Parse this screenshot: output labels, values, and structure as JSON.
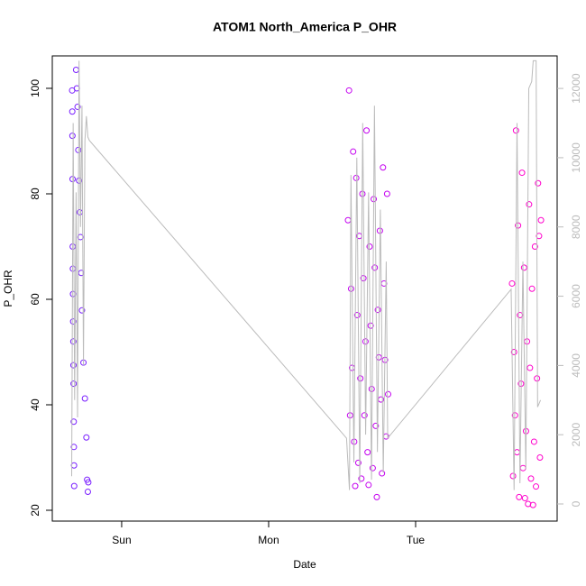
{
  "chart_data": {
    "type": "scatter",
    "title": "ATOM1 North_America P_OHR",
    "xlabel": "Date",
    "ylabel": "P_OHR",
    "xlim": [
      0.528,
      3.963
    ],
    "xticks": [
      {
        "value": 1,
        "label": "Sun"
      },
      {
        "value": 2,
        "label": "Mon"
      },
      {
        "value": 3,
        "label": "Tue"
      }
    ],
    "ylim": [
      17.95,
      106.15
    ],
    "yticks": [
      20,
      40,
      60,
      80,
      100
    ],
    "y2lim": [
      -495,
      12940
    ],
    "y2ticks": [
      0,
      2000,
      4000,
      6000,
      8000,
      10000,
      12000
    ],
    "y2color": "#bbbbbb",
    "series": [
      {
        "color": "#7a1fff",
        "x": [
          0.663,
          0.664,
          0.665,
          0.666,
          0.667,
          0.668,
          0.669,
          0.67,
          0.671,
          0.672,
          0.673,
          0.674,
          0.675,
          0.676,
          0.677,
          0.69,
          0.695,
          0.7,
          0.705,
          0.71,
          0.715,
          0.72,
          0.725,
          0.73,
          0.74,
          0.75,
          0.76,
          0.765,
          0.77,
          0.773
        ],
        "values": [
          99.6,
          95.6,
          91,
          82.8,
          70,
          65.8,
          61,
          55.8,
          52,
          47.5,
          44,
          36.8,
          32,
          28.5,
          24.6,
          103.5,
          100,
          96.5,
          88.3,
          82.5,
          76.5,
          71.8,
          65,
          57.9,
          48,
          41.2,
          33.8,
          25.8,
          23.5,
          25.3
        ]
      },
      {
        "color": "#c400f0",
        "x": [
          2.54,
          2.547,
          2.554,
          2.561,
          2.568,
          2.575,
          2.582,
          2.589,
          2.596,
          2.603,
          2.61,
          2.617,
          2.624,
          2.631,
          2.638,
          2.645,
          2.652,
          2.659,
          2.666,
          2.673,
          2.68,
          2.687,
          2.694,
          2.701,
          2.708,
          2.715,
          2.722,
          2.729,
          2.736,
          2.743,
          2.75,
          2.757,
          2.764,
          2.771,
          2.778,
          2.785,
          2.792,
          2.799,
          2.806,
          2.813
        ],
        "values": [
          75,
          99.6,
          38,
          62,
          47,
          88,
          33,
          24.6,
          83,
          57,
          29,
          72,
          45,
          26,
          80,
          64,
          38,
          52,
          92,
          31,
          24.8,
          70,
          55,
          43,
          28,
          79,
          66,
          36,
          22.5,
          58,
          49,
          73,
          41,
          27,
          85,
          63,
          48.5,
          34,
          80,
          42
        ]
      },
      {
        "color": "#ff00cc",
        "x": [
          3.656,
          3.663,
          3.67,
          3.676,
          3.683,
          3.69,
          3.697,
          3.704,
          3.71,
          3.717,
          3.724,
          3.731,
          3.738,
          3.744,
          3.751,
          3.758,
          3.765,
          3.772,
          3.778,
          3.785,
          3.792,
          3.799,
          3.806,
          3.812,
          3.819,
          3.826,
          3.833,
          3.84,
          3.846,
          3.853
        ],
        "values": [
          63,
          26.5,
          50,
          38,
          92,
          31,
          74,
          22.5,
          57,
          44,
          84,
          28,
          66,
          22.3,
          35,
          52,
          21.2,
          78,
          47,
          26,
          62,
          21,
          33,
          70,
          24.5,
          45,
          82,
          72,
          30,
          75
        ]
      },
      {
        "color": "#bbbbbb",
        "axis": "y2",
        "x": [
          0.66,
          0.67,
          0.68,
          0.69,
          0.7,
          0.71,
          0.72,
          0.73,
          0.74,
          0.75,
          0.76,
          0.77,
          0.78,
          2.53,
          2.55,
          2.56,
          2.58,
          2.6,
          2.62,
          2.64,
          2.66,
          2.68,
          2.7,
          2.72,
          2.74,
          2.76,
          2.78,
          2.8,
          2.81,
          3.65,
          3.67,
          3.69,
          3.71,
          3.73,
          3.75,
          3.77,
          3.79,
          3.8,
          3.81,
          3.82,
          3.83,
          3.85
        ],
        "values": [
          800,
          11000,
          3000,
          9000,
          2500,
          12800,
          8000,
          11500,
          4000,
          10500,
          11200,
          10600,
          10500,
          1900,
          400,
          9500,
          1200,
          10000,
          600,
          11000,
          2000,
          9000,
          700,
          11500,
          1500,
          8500,
          900,
          7000,
          1900,
          6200,
          400,
          11000,
          600,
          7000,
          1000,
          12000,
          12200,
          12800,
          12800,
          12800,
          2800,
          3000
        ]
      }
    ]
  }
}
